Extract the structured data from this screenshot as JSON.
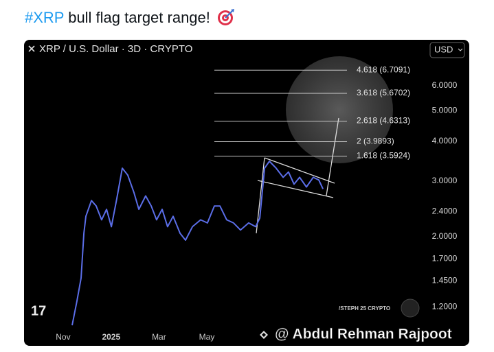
{
  "post": {
    "hashtag": "#XRP",
    "text": "bull flag target range!"
  },
  "watermarks": [
    "/STEPH 25 CRYPTO",
    "@ Abdul Rehman Rajpoot"
  ],
  "chart_data": {
    "type": "line",
    "title": "XRP / U.S. Dollar · 3D · CRYPTO",
    "currency": "USD",
    "color": "#5b6ee8",
    "log_scale": true,
    "grid": false,
    "x": [
      22.4,
      24.8,
      26.9,
      28.3,
      29.3,
      32.1,
      34.5,
      37.2,
      39.7,
      42.1,
      44.8,
      47.6,
      50.3,
      53.4,
      55.9,
      59.3,
      62.1,
      64.8,
      67.6,
      70.3,
      73.1,
      76.6,
      79.3,
      82.8,
      86.9,
      90.3,
      93.8,
      96.6,
      100,
      103.4,
      106.9,
      111,
      114.5,
      116.6,
      119,
      121.4,
      124.8,
      128.3,
      131,
      133.8,
      136.6,
      140,
      143.4,
      146.2,
      148.3
    ],
    "values": [
      1.05,
      1.25,
      1.48,
      2.05,
      2.32,
      2.6,
      2.5,
      2.26,
      2.44,
      2.15,
      2.63,
      3.29,
      3.13,
      2.76,
      2.44,
      2.69,
      2.5,
      2.26,
      2.44,
      2.15,
      2.32,
      2.05,
      1.95,
      2.15,
      2.26,
      2.21,
      2.5,
      2.5,
      2.26,
      2.21,
      2.1,
      2.21,
      2.15,
      2.29,
      3.29,
      3.46,
      3.29,
      3.08,
      3.2,
      2.93,
      3.08,
      2.87,
      3.08,
      3.02,
      2.83
    ],
    "xlim": [
      0,
      200
    ],
    "xticks": [
      {
        "value": 17.9,
        "label": "Nov"
      },
      {
        "value": 42,
        "label": "2025"
      },
      {
        "value": 66,
        "label": "Mar"
      },
      {
        "value": 90,
        "label": "May"
      }
    ],
    "ylim": [
      1.03,
      8.2
    ],
    "yticks": [
      {
        "value": 6,
        "label": "6.0000"
      },
      {
        "value": 5,
        "label": "5.0000"
      },
      {
        "value": 4,
        "label": "4.0000"
      },
      {
        "value": 3,
        "label": "3.0000"
      },
      {
        "value": 2.4,
        "label": "2.4000"
      },
      {
        "value": 2,
        "label": "2.0000"
      },
      {
        "value": 1.7,
        "label": "1.7000"
      },
      {
        "value": 1.45,
        "label": "1.4500"
      },
      {
        "value": 1.2,
        "label": "1.2000"
      }
    ],
    "levels": [
      {
        "label": "4.618 (6.7091)",
        "value": 6.7091
      },
      {
        "label": "3.618 (5.6702)",
        "value": 5.6702
      },
      {
        "label": "2.618 (4.6313)",
        "value": 4.6313
      },
      {
        "label": "2 (3.9893)",
        "value": 3.9893
      },
      {
        "label": "1.618 (3.5924)",
        "value": 3.5924
      }
    ]
  }
}
